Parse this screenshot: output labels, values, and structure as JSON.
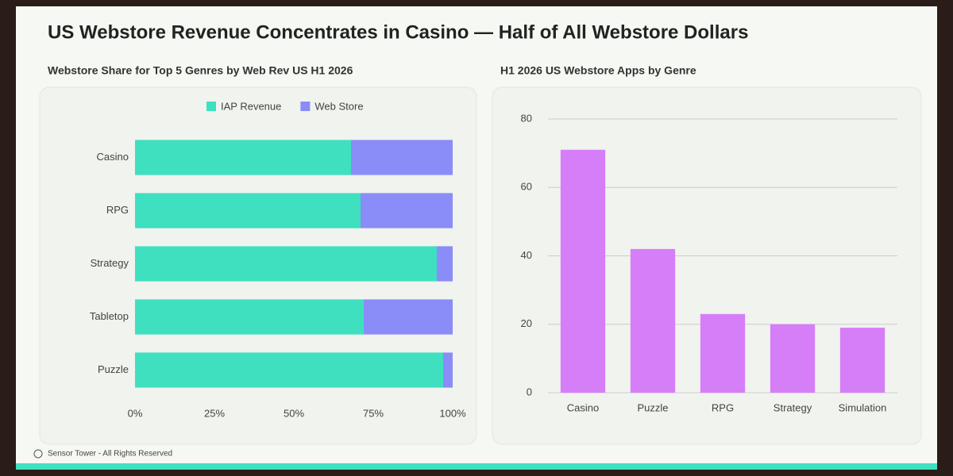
{
  "title": "US Webstore Revenue Concentrates in Casino — Half of All Webstore Dollars",
  "footer": "Sensor Tower - All Rights Reserved",
  "chart_data": [
    {
      "type": "bar",
      "orientation": "horizontal",
      "stacked": true,
      "title": "Webstore Share for Top 5 Genres by Web Rev US H1 2026",
      "categories": [
        "Casino",
        "RPG",
        "Strategy",
        "Tabletop",
        "Puzzle"
      ],
      "series": [
        {
          "name": "IAP Revenue",
          "color": "#3ee0c0",
          "values": [
            68,
            71,
            95,
            72,
            97
          ]
        },
        {
          "name": "Web Store",
          "color": "#8a8cf8",
          "values": [
            32,
            29,
            5,
            28,
            3
          ]
        }
      ],
      "xlim": [
        0,
        100
      ],
      "xticks": [
        {
          "value": 0,
          "label": "0%"
        },
        {
          "value": 25,
          "label": "25%"
        },
        {
          "value": 50,
          "label": "50%"
        },
        {
          "value": 75,
          "label": "75%"
        },
        {
          "value": 100,
          "label": "100%"
        }
      ],
      "legend": "top",
      "grid": false
    },
    {
      "type": "bar",
      "orientation": "vertical",
      "title": "H1 2026 US Webstore Apps by Genre",
      "categories": [
        "Casino",
        "Puzzle",
        "RPG",
        "Strategy",
        "Simulation"
      ],
      "values": [
        71,
        42,
        23,
        20,
        19
      ],
      "color": "#d67ef7",
      "ylim": [
        0,
        80
      ],
      "yticks": [
        0,
        20,
        40,
        60,
        80
      ],
      "grid": true
    }
  ]
}
